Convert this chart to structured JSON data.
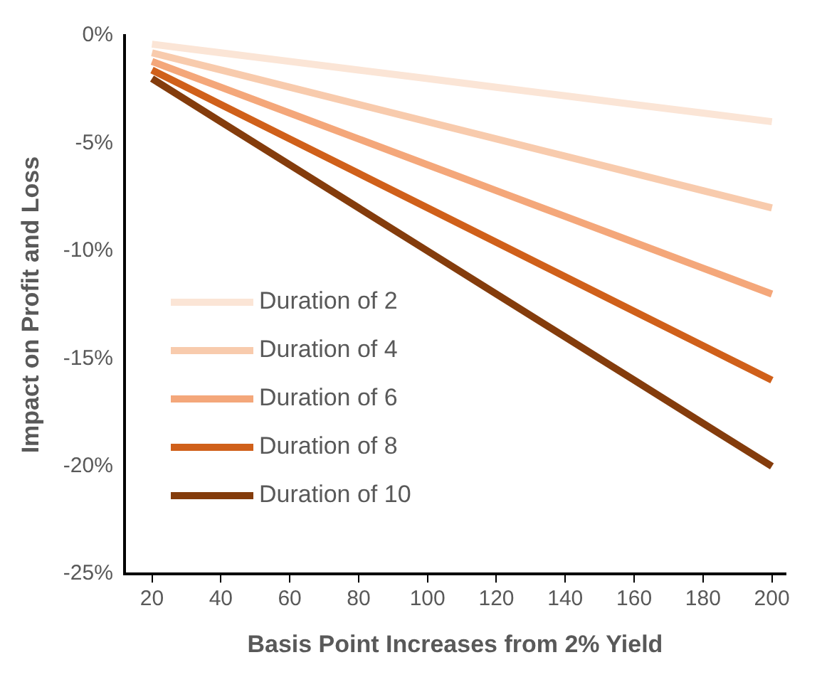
{
  "chart_data": {
    "type": "line",
    "xlabel": "Basis Point Increases from 2% Yield",
    "ylabel": "Impact on Profit and Loss",
    "x": [
      20,
      40,
      60,
      80,
      100,
      120,
      140,
      160,
      180,
      200
    ],
    "series": [
      {
        "name": "Duration of 2",
        "color": "#fbe5d6",
        "values": [
          -0.4,
          -0.8,
          -1.2,
          -1.6,
          -2,
          -2.4,
          -2.8,
          -3.2,
          -3.6,
          -4
        ]
      },
      {
        "name": "Duration of 4",
        "color": "#f8cbad",
        "values": [
          -0.8,
          -1.6,
          -2.4,
          -3.2,
          -4,
          -4.8,
          -5.6,
          -6.4,
          -7.2,
          -8
        ]
      },
      {
        "name": "Duration of 6",
        "color": "#f4a77a",
        "values": [
          -1.2,
          -2.4,
          -3.6,
          -4.8,
          -6,
          -7.2,
          -8.4,
          -9.6,
          -10.8,
          -12
        ]
      },
      {
        "name": "Duration of 8",
        "color": "#d0601a",
        "values": [
          -1.6,
          -3.2,
          -4.8,
          -6.4,
          -8,
          -9.6,
          -11.2,
          -12.8,
          -14.4,
          -16
        ]
      },
      {
        "name": "Duration of 10",
        "color": "#843c0c",
        "values": [
          -2,
          -4,
          -6,
          -8,
          -10,
          -12,
          -14,
          -16,
          -18,
          -20
        ]
      }
    ],
    "xlim": [
      12,
      204
    ],
    "xticks": [
      20,
      40,
      60,
      80,
      100,
      120,
      140,
      160,
      180,
      200
    ],
    "ylim": [
      -25,
      0
    ],
    "yticks": [
      {
        "value": -25,
        "label": "-25%"
      },
      {
        "value": -20,
        "label": "-20%"
      },
      {
        "value": -15,
        "label": "-15%"
      },
      {
        "value": -10,
        "label": "-10%"
      },
      {
        "value": -5,
        "label": "-5%"
      },
      {
        "value": 0,
        "label": "0%"
      }
    ],
    "grid": false,
    "legend": "bottom left",
    "marker": "none",
    "line_style": "solid"
  }
}
